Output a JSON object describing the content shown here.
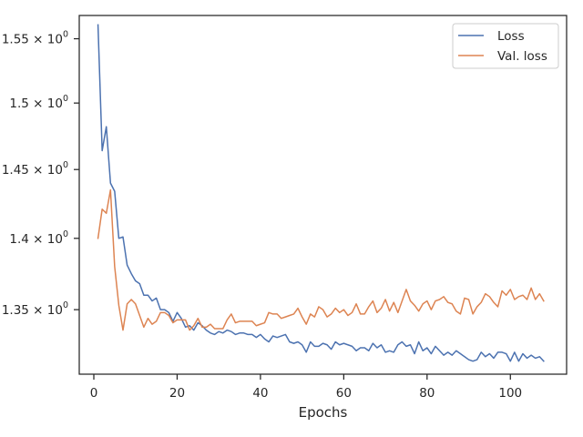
{
  "chart_data": {
    "type": "line",
    "title": "",
    "xlabel": "Epochs",
    "ylabel": "",
    "xlim": [
      -3.5,
      113.5
    ],
    "ylim": [
      1.3063,
      1.5685
    ],
    "y_scale": "log",
    "grid": false,
    "legend_position": "top-right",
    "x_ticks": [
      0,
      20,
      40,
      60,
      80,
      100
    ],
    "x_tick_labels": [
      "0",
      "20",
      "40",
      "60",
      "80",
      "100"
    ],
    "y_ticks": [
      1.35,
      1.4,
      1.45,
      1.5,
      1.55
    ],
    "y_tick_labels": [
      {
        "mantissa": "1.35",
        "base": "10",
        "exp": "0"
      },
      {
        "mantissa": "1.4",
        "base": "10",
        "exp": "0"
      },
      {
        "mantissa": "1.45",
        "base": "10",
        "exp": "0"
      },
      {
        "mantissa": "1.5",
        "base": "10",
        "exp": "0"
      },
      {
        "mantissa": "1.55",
        "base": "10",
        "exp": "0"
      }
    ],
    "series": [
      {
        "name": "Loss",
        "color": "#4c72b0",
        "x": [
          1,
          2,
          3,
          4,
          5,
          6,
          7,
          8,
          9,
          10,
          11,
          12,
          13,
          14,
          15,
          16,
          17,
          18,
          19,
          20,
          21,
          22,
          23,
          24,
          25,
          26,
          27,
          28,
          29,
          30,
          31,
          32,
          33,
          34,
          35,
          36,
          37,
          38,
          39,
          40,
          41,
          42,
          43,
          44,
          45,
          46,
          47,
          48,
          49,
          50,
          51,
          52,
          53,
          54,
          55,
          56,
          57,
          58,
          59,
          60,
          61,
          62,
          63,
          64,
          65,
          66,
          67,
          68,
          69,
          70,
          71,
          72,
          73,
          74,
          75,
          76,
          77,
          78,
          79,
          80,
          81,
          82,
          83,
          84,
          85,
          86,
          87,
          88,
          89,
          90,
          91,
          92,
          93,
          94,
          95,
          96,
          97,
          98,
          99,
          100,
          101,
          102,
          103,
          104,
          105,
          106,
          107,
          108
        ],
        "values": [
          1.561,
          1.464,
          1.482,
          1.44,
          1.434,
          1.4,
          1.401,
          1.381,
          1.375,
          1.37,
          1.368,
          1.36,
          1.36,
          1.356,
          1.358,
          1.35,
          1.35,
          1.348,
          1.342,
          1.348,
          1.344,
          1.338,
          1.339,
          1.336,
          1.341,
          1.339,
          1.336,
          1.334,
          1.333,
          1.335,
          1.334,
          1.336,
          1.335,
          1.333,
          1.334,
          1.334,
          1.333,
          1.333,
          1.331,
          1.333,
          1.33,
          1.328,
          1.332,
          1.331,
          1.332,
          1.333,
          1.328,
          1.327,
          1.328,
          1.326,
          1.321,
          1.328,
          1.325,
          1.325,
          1.327,
          1.326,
          1.323,
          1.328,
          1.326,
          1.327,
          1.326,
          1.325,
          1.322,
          1.324,
          1.324,
          1.322,
          1.327,
          1.324,
          1.326,
          1.321,
          1.322,
          1.321,
          1.326,
          1.328,
          1.325,
          1.326,
          1.32,
          1.328,
          1.322,
          1.324,
          1.32,
          1.325,
          1.322,
          1.319,
          1.321,
          1.319,
          1.322,
          1.32,
          1.318,
          1.316,
          1.315,
          1.316,
          1.321,
          1.318,
          1.32,
          1.317,
          1.321,
          1.321,
          1.32,
          1.315,
          1.321,
          1.315,
          1.32,
          1.317,
          1.319,
          1.317,
          1.318,
          1.315
        ]
      },
      {
        "name": "Val. loss",
        "color": "#dd8452",
        "x": [
          1,
          2,
          3,
          4,
          5,
          6,
          7,
          8,
          9,
          10,
          11,
          12,
          13,
          14,
          15,
          16,
          17,
          18,
          19,
          20,
          21,
          22,
          23,
          24,
          25,
          26,
          27,
          28,
          29,
          30,
          31,
          32,
          33,
          34,
          35,
          36,
          37,
          38,
          39,
          40,
          41,
          42,
          43,
          44,
          45,
          46,
          47,
          48,
          49,
          50,
          51,
          52,
          53,
          54,
          55,
          56,
          57,
          58,
          59,
          60,
          61,
          62,
          63,
          64,
          65,
          66,
          67,
          68,
          69,
          70,
          71,
          72,
          73,
          74,
          75,
          76,
          77,
          78,
          79,
          80,
          81,
          82,
          83,
          84,
          85,
          86,
          87,
          88,
          89,
          90,
          91,
          92,
          93,
          94,
          95,
          96,
          97,
          98,
          99,
          100,
          101,
          102,
          103,
          104,
          105,
          106,
          107,
          108
        ],
        "values": [
          1.4,
          1.421,
          1.418,
          1.435,
          1.38,
          1.353,
          1.336,
          1.354,
          1.357,
          1.354,
          1.346,
          1.338,
          1.344,
          1.34,
          1.342,
          1.348,
          1.348,
          1.346,
          1.341,
          1.343,
          1.343,
          1.343,
          1.336,
          1.339,
          1.344,
          1.338,
          1.338,
          1.34,
          1.337,
          1.337,
          1.337,
          1.343,
          1.347,
          1.341,
          1.342,
          1.342,
          1.342,
          1.342,
          1.339,
          1.34,
          1.341,
          1.348,
          1.347,
          1.347,
          1.344,
          1.345,
          1.346,
          1.347,
          1.351,
          1.345,
          1.34,
          1.347,
          1.345,
          1.352,
          1.35,
          1.345,
          1.347,
          1.351,
          1.348,
          1.35,
          1.346,
          1.348,
          1.354,
          1.347,
          1.347,
          1.352,
          1.356,
          1.348,
          1.351,
          1.357,
          1.349,
          1.355,
          1.348,
          1.356,
          1.364,
          1.356,
          1.353,
          1.349,
          1.354,
          1.356,
          1.35,
          1.356,
          1.357,
          1.359,
          1.355,
          1.354,
          1.349,
          1.347,
          1.358,
          1.357,
          1.347,
          1.352,
          1.355,
          1.361,
          1.359,
          1.355,
          1.352,
          1.363,
          1.36,
          1.364,
          1.357,
          1.359,
          1.36,
          1.357,
          1.365,
          1.357,
          1.361,
          1.356
        ]
      }
    ]
  }
}
